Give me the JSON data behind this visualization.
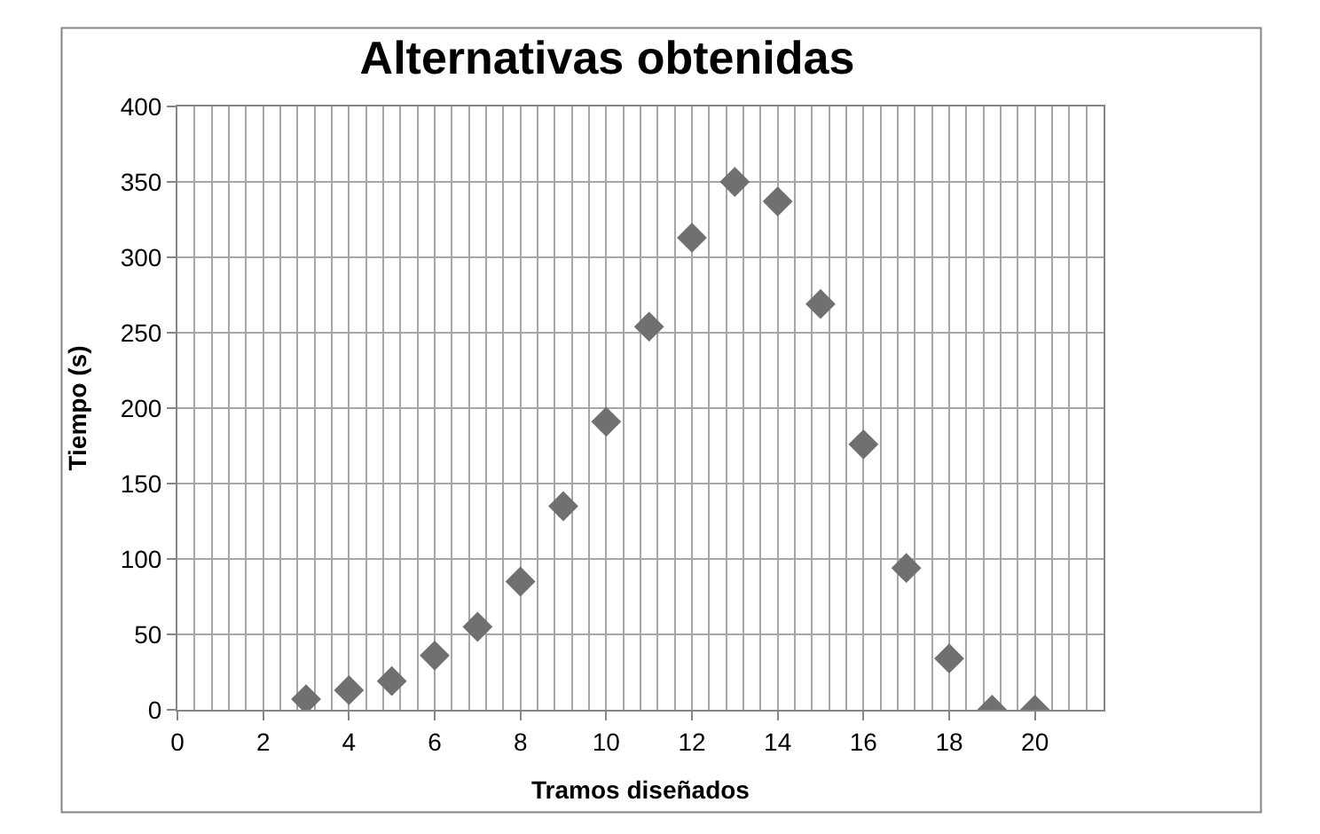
{
  "chart_data": {
    "type": "scatter",
    "title": "Alternativas obtenidas",
    "xlabel": "Tramos diseñados",
    "ylabel": "Tiempo (s)",
    "x": [
      3,
      4,
      5,
      6,
      7,
      8,
      9,
      10,
      11,
      12,
      13,
      14,
      15,
      16,
      17,
      18,
      19,
      20
    ],
    "series": [
      {
        "color": "#707070",
        "values": [
          7,
          13,
          19,
          36,
          55,
          85,
          135,
          191,
          254,
          313,
          350,
          337,
          269,
          176,
          94,
          34,
          0,
          0
        ]
      }
    ],
    "xlim": [
      0,
      21.6
    ],
    "xticks": [
      0,
      2,
      4,
      6,
      8,
      10,
      12,
      14,
      16,
      18,
      20
    ],
    "ylim": [
      0,
      400
    ],
    "yticks": [
      0,
      50,
      100,
      150,
      200,
      250,
      300,
      350,
      400
    ],
    "grid": true,
    "marker": "diamond"
  }
}
